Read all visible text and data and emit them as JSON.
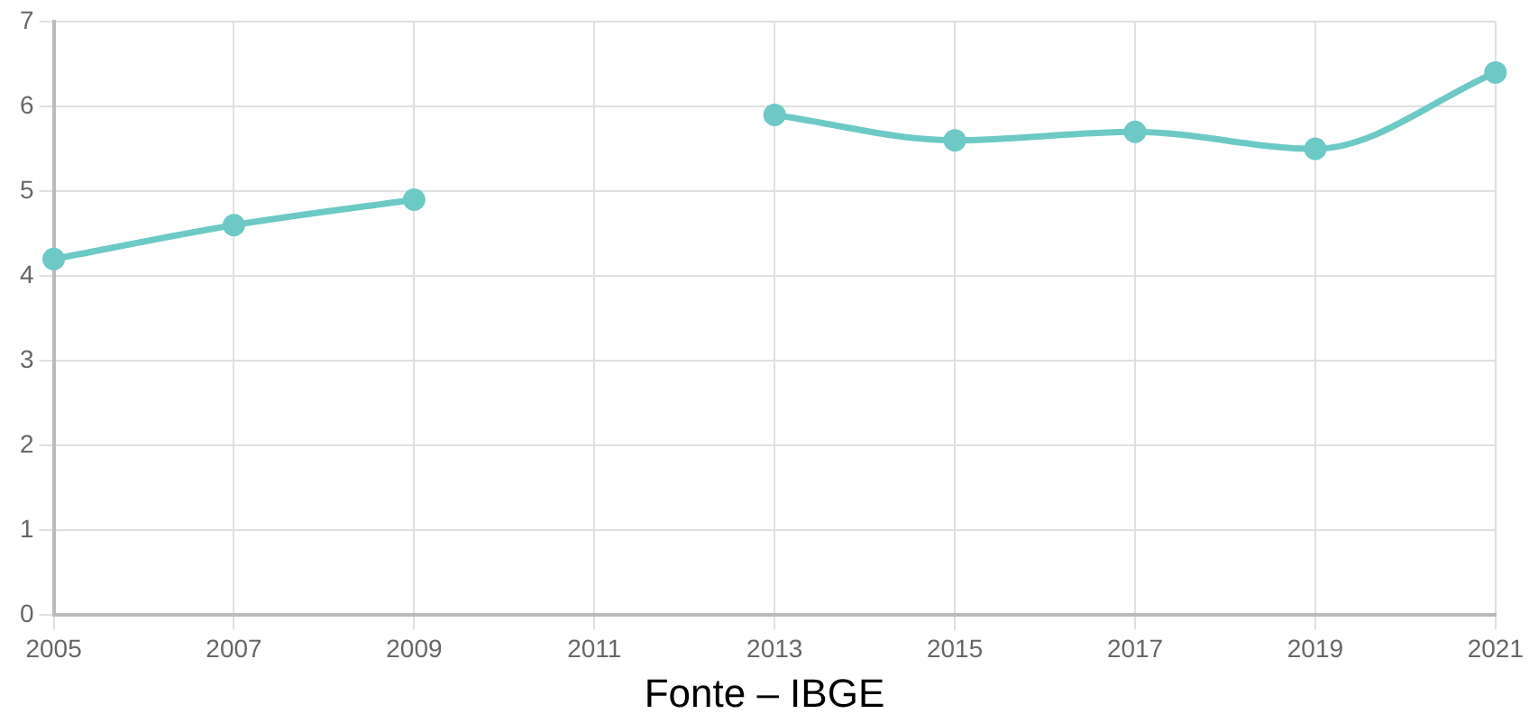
{
  "chart_data": {
    "type": "line",
    "categories": [
      "2005",
      "2007",
      "2009",
      "2011",
      "2013",
      "2015",
      "2017",
      "2019",
      "2021"
    ],
    "series": [
      {
        "color": "#6cc9c6",
        "values": [
          4.2,
          4.6,
          4.9,
          null,
          5.9,
          5.6,
          5.7,
          5.5,
          6.4
        ]
      }
    ],
    "ylim": [
      0,
      7
    ],
    "yticks": [
      0,
      1,
      2,
      3,
      4,
      5,
      6,
      7
    ],
    "grid": true,
    "legend": false,
    "marker": "circle",
    "line_style": "solid",
    "annotations": [
      "Fonte – IBGE"
    ]
  }
}
